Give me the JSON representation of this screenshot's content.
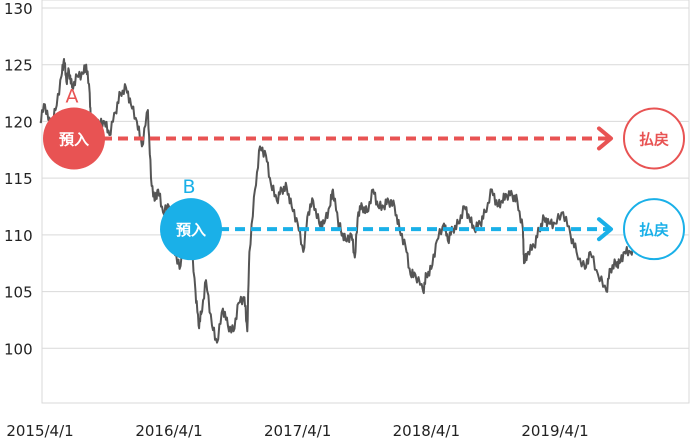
{
  "chart_data": {
    "type": "line",
    "title": "",
    "xlabel": "",
    "ylabel": "",
    "ylim": [
      95,
      130
    ],
    "yticks": [
      100,
      105,
      110,
      115,
      120,
      125,
      130
    ],
    "xticks": [
      "2015/4/1",
      "2016/4/1",
      "2017/4/1",
      "2018/4/1",
      "2019/4/1"
    ],
    "xrange": [
      "2015/4/1",
      "2020/1/1"
    ],
    "grid": "horizontal",
    "series": [
      {
        "color": "#555555",
        "points": [
          [
            "2015/4/1",
            120.0
          ],
          [
            "2015/4/15",
            121.5
          ],
          [
            "2015/5/1",
            119.5
          ],
          [
            "2015/5/15",
            121.0
          ],
          [
            "2015/6/1",
            124.0
          ],
          [
            "2015/6/8",
            125.5
          ],
          [
            "2015/6/15",
            123.5
          ],
          [
            "2015/6/22",
            124.5
          ],
          [
            "2015/7/1",
            123.0
          ],
          [
            "2015/7/15",
            124.0
          ],
          [
            "2015/8/1",
            124.2
          ],
          [
            "2015/8/10",
            125.0
          ],
          [
            "2015/8/20",
            122.5
          ],
          [
            "2015/8/25",
            118.5
          ],
          [
            "2015/9/1",
            120.0
          ],
          [
            "2015/9/15",
            119.8
          ],
          [
            "2015/10/1",
            120.0
          ],
          [
            "2015/10/15",
            118.8
          ],
          [
            "2015/11/1",
            120.8
          ],
          [
            "2015/11/15",
            122.5
          ],
          [
            "2015/12/1",
            123.0
          ],
          [
            "2015/12/15",
            121.5
          ],
          [
            "2016/1/1",
            120.0
          ],
          [
            "2016/1/15",
            117.8
          ],
          [
            "2016/2/1",
            121.0
          ],
          [
            "2016/2/10",
            115.0
          ],
          [
            "2016/2/20",
            113.0
          ],
          [
            "2016/3/1",
            114.0
          ],
          [
            "2016/3/15",
            112.0
          ],
          [
            "2016/4/1",
            112.5
          ],
          [
            "2016/4/15",
            109.0
          ],
          [
            "2016/5/1",
            107.0
          ],
          [
            "2016/5/15",
            109.5
          ],
          [
            "2016/6/1",
            110.0
          ],
          [
            "2016/6/15",
            105.0
          ],
          [
            "2016/6/24",
            102.0
          ],
          [
            "2016/7/1",
            103.0
          ],
          [
            "2016/7/15",
            106.0
          ],
          [
            "2016/8/1",
            102.0
          ],
          [
            "2016/8/15",
            100.5
          ],
          [
            "2016/9/1",
            103.5
          ],
          [
            "2016/9/15",
            102.0
          ],
          [
            "2016/10/1",
            101.5
          ],
          [
            "2016/10/15",
            104.0
          ],
          [
            "2016/11/1",
            104.5
          ],
          [
            "2016/11/9",
            101.5
          ],
          [
            "2016/11/15",
            108.5
          ],
          [
            "2016/12/1",
            114.0
          ],
          [
            "2016/12/15",
            117.8
          ],
          [
            "2017/1/1",
            117.0
          ],
          [
            "2017/1/15",
            114.5
          ],
          [
            "2017/2/1",
            113.0
          ],
          [
            "2017/2/15",
            114.0
          ],
          [
            "2017/3/1",
            114.2
          ],
          [
            "2017/3/15",
            112.5
          ],
          [
            "2017/4/1",
            111.0
          ],
          [
            "2017/4/17",
            108.5
          ],
          [
            "2017/5/1",
            112.0
          ],
          [
            "2017/5/15",
            113.0
          ],
          [
            "2017/6/1",
            111.0
          ],
          [
            "2017/6/15",
            111.0
          ],
          [
            "2017/7/1",
            112.5
          ],
          [
            "2017/7/10",
            114.0
          ],
          [
            "2017/7/25",
            111.0
          ],
          [
            "2017/8/1",
            110.5
          ],
          [
            "2017/8/15",
            109.5
          ],
          [
            "2017/9/1",
            110.0
          ],
          [
            "2017/9/10",
            108.0
          ],
          [
            "2017/9/20",
            112.0
          ],
          [
            "2017/10/1",
            112.5
          ],
          [
            "2017/10/15",
            112.0
          ],
          [
            "2017/11/1",
            114.0
          ],
          [
            "2017/11/15",
            112.5
          ],
          [
            "2017/12/1",
            112.5
          ],
          [
            "2017/12/15",
            113.0
          ],
          [
            "2018/1/1",
            112.5
          ],
          [
            "2018/1/15",
            110.5
          ],
          [
            "2018/2/1",
            109.0
          ],
          [
            "2018/2/15",
            106.5
          ],
          [
            "2018/3/1",
            106.5
          ],
          [
            "2018/3/23",
            105.0
          ],
          [
            "2018/4/1",
            106.5
          ],
          [
            "2018/4/15",
            107.0
          ],
          [
            "2018/5/1",
            109.5
          ],
          [
            "2018/5/21",
            111.0
          ],
          [
            "2018/6/1",
            109.5
          ],
          [
            "2018/6/15",
            110.5
          ],
          [
            "2018/7/1",
            111.0
          ],
          [
            "2018/7/18",
            112.5
          ],
          [
            "2018/8/1",
            111.5
          ],
          [
            "2018/8/15",
            110.5
          ],
          [
            "2018/9/1",
            111.0
          ],
          [
            "2018/9/15",
            112.0
          ],
          [
            "2018/10/4",
            114.0
          ],
          [
            "2018/10/20",
            112.5
          ],
          [
            "2018/11/1",
            113.0
          ],
          [
            "2018/11/15",
            113.5
          ],
          [
            "2018/12/1",
            113.5
          ],
          [
            "2018/12/15",
            113.0
          ],
          [
            "2018/12/31",
            110.5
          ],
          [
            "2019/1/3",
            107.5
          ],
          [
            "2019/1/15",
            108.5
          ],
          [
            "2019/2/1",
            109.0
          ],
          [
            "2019/2/15",
            110.5
          ],
          [
            "2019/3/1",
            111.5
          ],
          [
            "2019/3/15",
            111.0
          ],
          [
            "2019/4/1",
            111.0
          ],
          [
            "2019/4/24",
            112.0
          ],
          [
            "2019/5/15",
            110.0
          ],
          [
            "2019/6/1",
            108.5
          ],
          [
            "2019/6/25",
            107.0
          ],
          [
            "2019/7/10",
            108.5
          ],
          [
            "2019/8/1",
            106.5
          ],
          [
            "2019/8/25",
            105.0
          ],
          [
            "2019/9/5",
            107.0
          ],
          [
            "2019/9/20",
            107.5
          ],
          [
            "2019/10/1",
            107.5
          ],
          [
            "2019/10/15",
            108.5
          ],
          [
            "2019/11/1",
            108.5
          ],
          [
            "2019/11/20",
            109.0
          ],
          [
            "2019/12/10",
            108.5
          ]
        ]
      }
    ],
    "annotations": [
      {
        "letter": "A",
        "bubble": "預入",
        "end_label": "払戻",
        "color": "#e85353",
        "level": 118.5,
        "start": "2015/4/1",
        "line": "dashed"
      },
      {
        "letter": "B",
        "bubble": "預入",
        "end_label": "払戻",
        "color": "#1ab0e8",
        "level": 110.5,
        "start": "2016/3/15",
        "line": "dashed"
      }
    ]
  }
}
